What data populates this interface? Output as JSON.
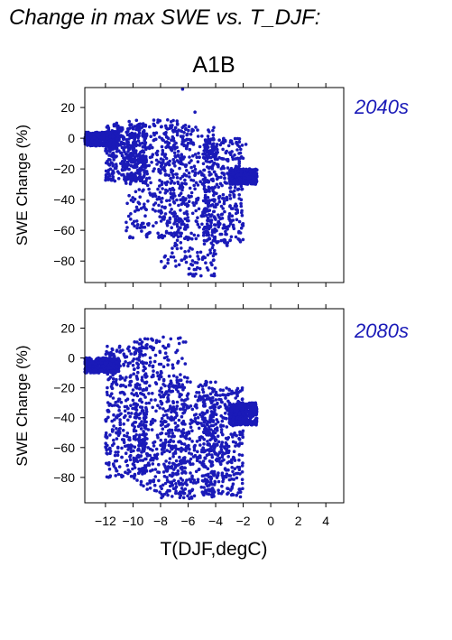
{
  "figure": {
    "title": "Change in max SWE vs. T_DJF:",
    "scenario": "A1B",
    "accent_color": "#1a1ab8"
  },
  "chart_data": [
    {
      "type": "scatter",
      "period_label": "2040s",
      "ylabel": "SWE Change (%)",
      "xlabel": "",
      "xlim": [
        -13.5,
        5.3
      ],
      "ylim": [
        -94,
        33
      ],
      "x_ticks": [
        -12,
        -10,
        -8,
        -6,
        -4,
        -2,
        0,
        2,
        4
      ],
      "x_tick_labels": [],
      "y_ticks": [
        20,
        0,
        -20,
        -40,
        -60,
        -80
      ],
      "y_tick_labels": [
        "20",
        "0",
        "−20",
        "−40",
        "−60",
        "−80"
      ],
      "color": "#1a1ab8",
      "grid": false,
      "legend": "none",
      "clusters": [
        {
          "x_range": [
            -13.5,
            -11
          ],
          "y_range": [
            -5,
            4
          ]
        },
        {
          "x_range": [
            -12,
            -9
          ],
          "y_range": [
            -28,
            10
          ]
        },
        {
          "x_range": [
            -10.5,
            -6
          ],
          "y_range": [
            -65,
            12
          ]
        },
        {
          "x_range": [
            -8,
            -4
          ],
          "y_range": [
            -90,
            8
          ]
        },
        {
          "x_range": [
            -5,
            -2
          ],
          "y_range": [
            -70,
            0
          ]
        },
        {
          "x_range": [
            -3,
            -1
          ],
          "y_range": [
            -30,
            -20
          ]
        }
      ],
      "outliers": [
        {
          "x": -6.4,
          "y": 32
        },
        {
          "x": -5.5,
          "y": 17
        },
        {
          "x": -13.4,
          "y": 3
        },
        {
          "x": -1.8,
          "y": -4
        }
      ]
    },
    {
      "type": "scatter",
      "period_label": "2080s",
      "ylabel": "SWE Change (%)",
      "xlabel": "T(DJF,degC)",
      "xlim": [
        -13.5,
        5.3
      ],
      "ylim": [
        -97,
        33
      ],
      "x_ticks": [
        -12,
        -10,
        -8,
        -6,
        -4,
        -2,
        0,
        2,
        4
      ],
      "x_tick_labels": [
        "−12",
        "−10",
        "−8",
        "−6",
        "−4",
        "−2",
        "0",
        "2",
        "4"
      ],
      "y_ticks": [
        20,
        0,
        -20,
        -40,
        -60,
        -80
      ],
      "y_tick_labels": [
        "20",
        "0",
        "−20",
        "−40",
        "−60",
        "−80"
      ],
      "color": "#1a1ab8",
      "grid": false,
      "legend": "none",
      "clusters": [
        {
          "x_range": [
            -13.5,
            -11
          ],
          "y_range": [
            -10,
            0
          ]
        },
        {
          "x_range": [
            -12,
            -9
          ],
          "y_range": [
            -80,
            8
          ]
        },
        {
          "x_range": [
            -10,
            -6
          ],
          "y_range": [
            -92,
            14
          ]
        },
        {
          "x_range": [
            -8,
            -4
          ],
          "y_range": [
            -95,
            -15
          ]
        },
        {
          "x_range": [
            -5,
            -2
          ],
          "y_range": [
            -92,
            -20
          ]
        },
        {
          "x_range": [
            -3,
            -1
          ],
          "y_range": [
            -45,
            -30
          ]
        }
      ],
      "outliers": [
        {
          "x": -13.4,
          "y": -5
        },
        {
          "x": -7.8,
          "y": 14
        },
        {
          "x": -1.6,
          "y": -33
        },
        {
          "x": -2.2,
          "y": -93
        }
      ]
    }
  ]
}
